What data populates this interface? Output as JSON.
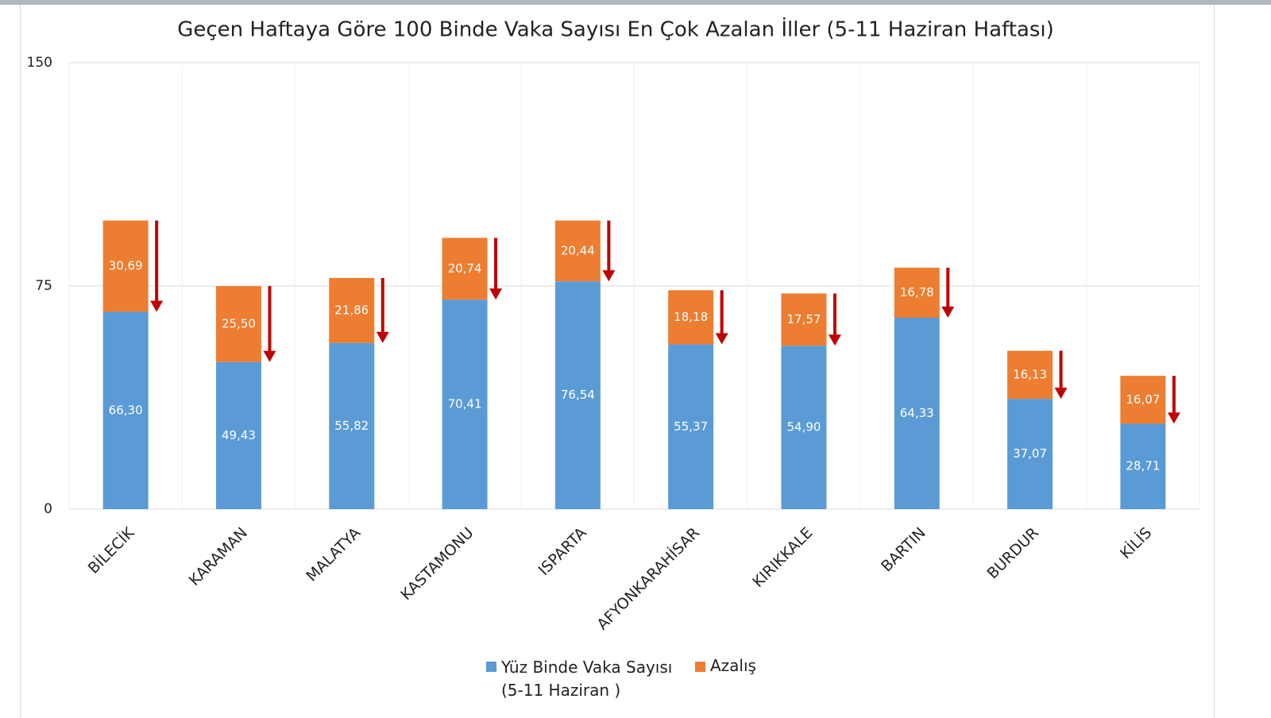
{
  "chart_data": {
    "type": "stacked_bar",
    "title": "Geçen Haftaya Göre 100 Binde Vaka Sayısı En Çok Azalan İller (5-11 Haziran Haftası)",
    "categories": [
      "BİLECİK",
      "KARAMAN",
      "MALATYA",
      "KASTAMONU",
      "ISPARTA",
      "AFYONKARAHİSAR",
      "KIRIKKALE",
      "BARTIN",
      "BURDUR",
      "KİLİS"
    ],
    "series": [
      {
        "name": "Yüz Binde Vaka Sayısı (5-11 Haziran )",
        "color": "#5b9bd5",
        "values": [
          66.3,
          49.43,
          55.82,
          70.41,
          76.54,
          55.37,
          54.9,
          64.33,
          37.07,
          28.71
        ],
        "value_labels": [
          "66,30",
          "49,43",
          "55,82",
          "70,41",
          "76,54",
          "55,37",
          "54,90",
          "64,33",
          "37,07",
          "28,71"
        ]
      },
      {
        "name": "Azalış",
        "color": "#ed7d31",
        "values": [
          30.69,
          25.5,
          21.86,
          20.74,
          20.44,
          18.18,
          17.57,
          16.78,
          16.13,
          16.07
        ],
        "value_labels": [
          "30,69",
          "25,50",
          "21,86",
          "20,74",
          "20,44",
          "18,18",
          "17,57",
          "16,78",
          "16,13",
          "16,07"
        ]
      }
    ],
    "arrow_color": "#c00000",
    "ylim": [
      0,
      150
    ],
    "yticks": [
      0,
      75,
      150
    ],
    "grid": true
  }
}
